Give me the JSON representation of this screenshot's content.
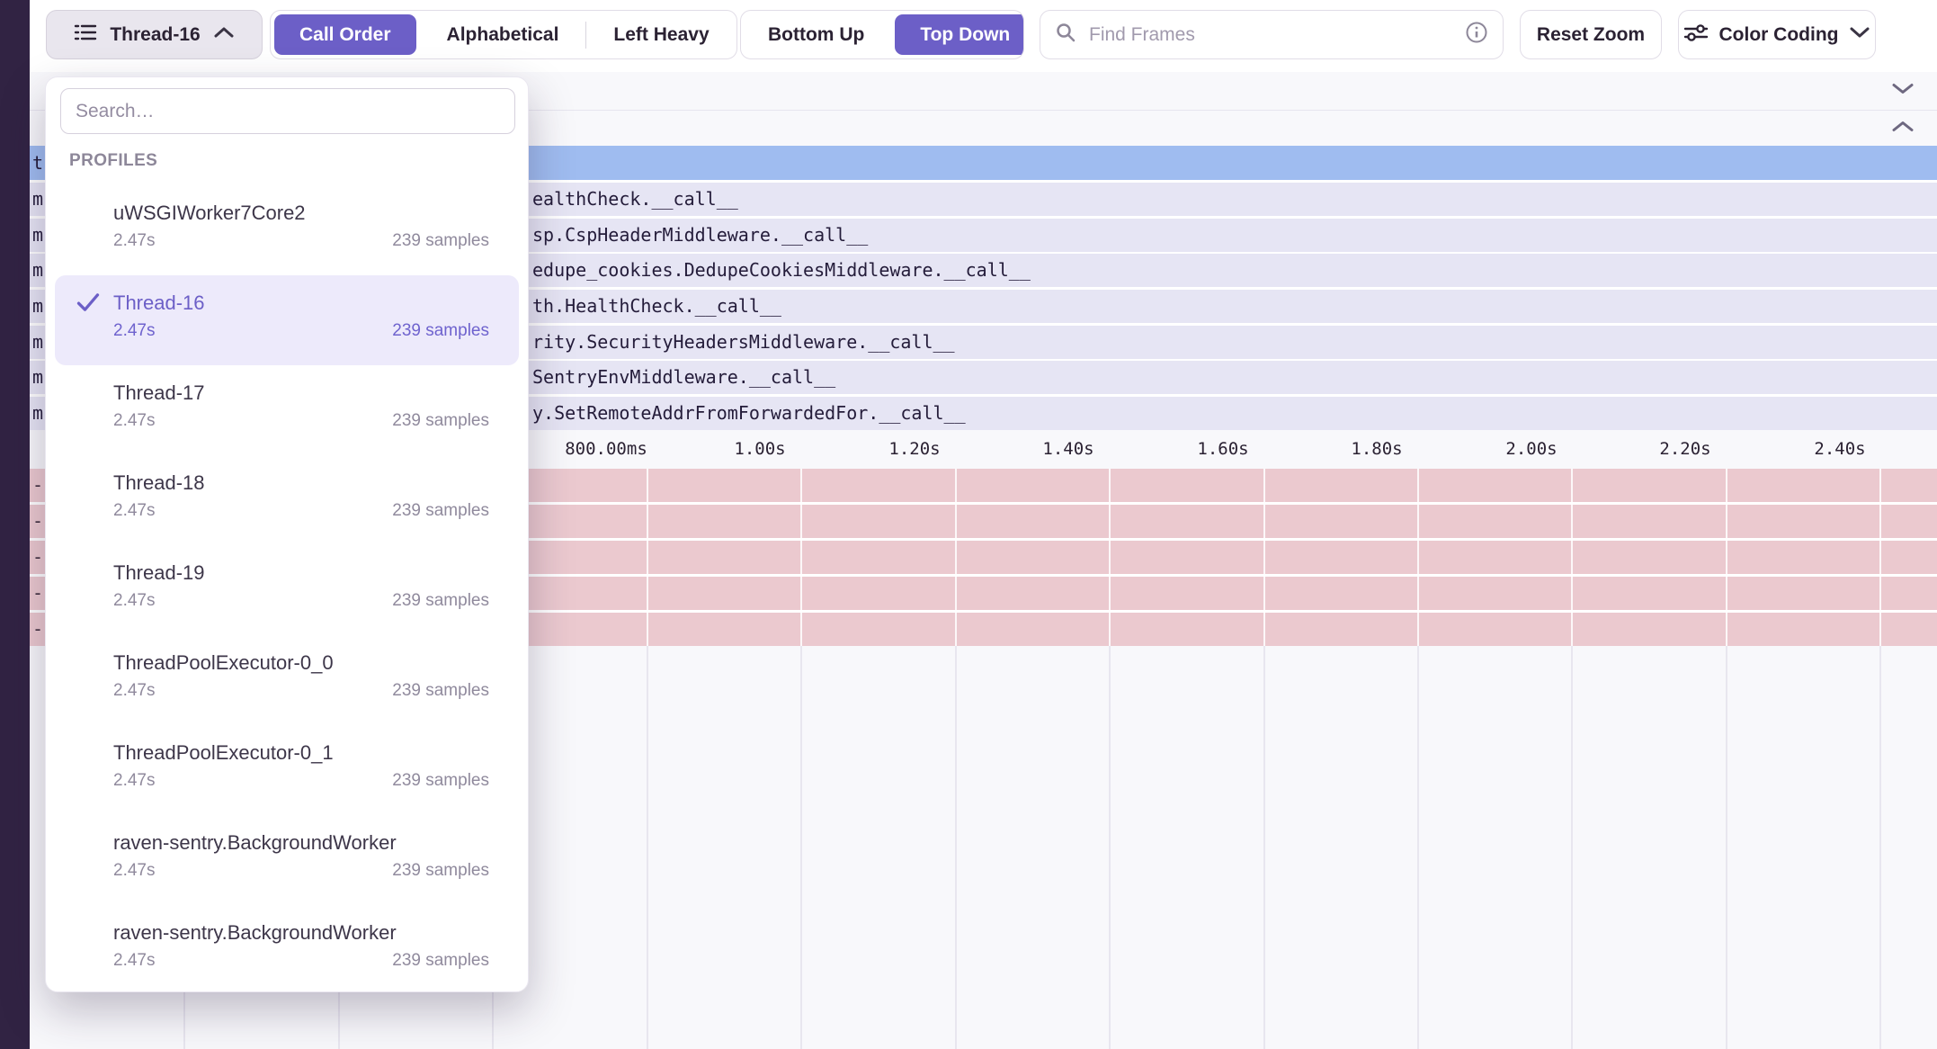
{
  "toolbar": {
    "thread_selector": {
      "label": "Thread-16"
    },
    "sort_modes": {
      "call_order": "Call Order",
      "alphabetical": "Alphabetical",
      "left_heavy": "Left Heavy",
      "active": "Call Order"
    },
    "direction_modes": {
      "bottom_up": "Bottom Up",
      "top_down": "Top Down",
      "active": "Top Down"
    },
    "find_frames": {
      "placeholder": "Find Frames"
    },
    "reset_zoom_label": "Reset Zoom",
    "color_coding_label": "Color Coding"
  },
  "dropdown": {
    "search_placeholder": "Search…",
    "section_label": "PROFILES",
    "items": [
      {
        "name": "uWSGIWorker7Core2",
        "duration": "2.47s",
        "samples": "239 samples",
        "selected": false
      },
      {
        "name": "Thread-16",
        "duration": "2.47s",
        "samples": "239 samples",
        "selected": true
      },
      {
        "name": "Thread-17",
        "duration": "2.47s",
        "samples": "239 samples",
        "selected": false
      },
      {
        "name": "Thread-18",
        "duration": "2.47s",
        "samples": "239 samples",
        "selected": false
      },
      {
        "name": "Thread-19",
        "duration": "2.47s",
        "samples": "239 samples",
        "selected": false
      },
      {
        "name": "ThreadPoolExecutor-0_0",
        "duration": "2.47s",
        "samples": "239 samples",
        "selected": false
      },
      {
        "name": "ThreadPoolExecutor-0_1",
        "duration": "2.47s",
        "samples": "239 samples",
        "selected": false
      },
      {
        "name": "raven-sentry.BackgroundWorker",
        "duration": "2.47s",
        "samples": "239 samples",
        "selected": false
      },
      {
        "name": "raven-sentry.BackgroundWorker",
        "duration": "2.47s",
        "samples": "239 samples",
        "selected": false
      }
    ]
  },
  "flamegraph": {
    "selected_frame_fragment": "t",
    "frame_rows": [
      {
        "edge": "m",
        "label": "ealthCheck.__call__"
      },
      {
        "edge": "m",
        "label": "sp.CspHeaderMiddleware.__call__"
      },
      {
        "edge": "m",
        "label": "edupe_cookies.DedupeCookiesMiddleware.__call__"
      },
      {
        "edge": "m",
        "label": "th.HealthCheck.__call__"
      },
      {
        "edge": "m",
        "label": "rity.SecurityHeadersMiddleware.__call__"
      },
      {
        "edge": "m",
        "label": "SentryEnvMiddleware.__call__"
      },
      {
        "edge": "m",
        "label": "y.SetRemoteAddrFromForwardedFor.__call__"
      }
    ],
    "axis_ticks": [
      "800.00ms",
      "1.00s",
      "1.20s",
      "1.40s",
      "1.60s",
      "1.80s",
      "2.00s",
      "2.20s",
      "2.40s"
    ],
    "pink_fragments": [
      "-",
      "-",
      "-",
      "-",
      "-"
    ]
  },
  "colors": {
    "accent": "#6C5FC7",
    "selected_row": "#9FBCF0",
    "frame_row": "#E6E5F4",
    "system_row": "#EBC9CF",
    "sidebar": "#312343",
    "panel_header": "#F8F8FB"
  }
}
